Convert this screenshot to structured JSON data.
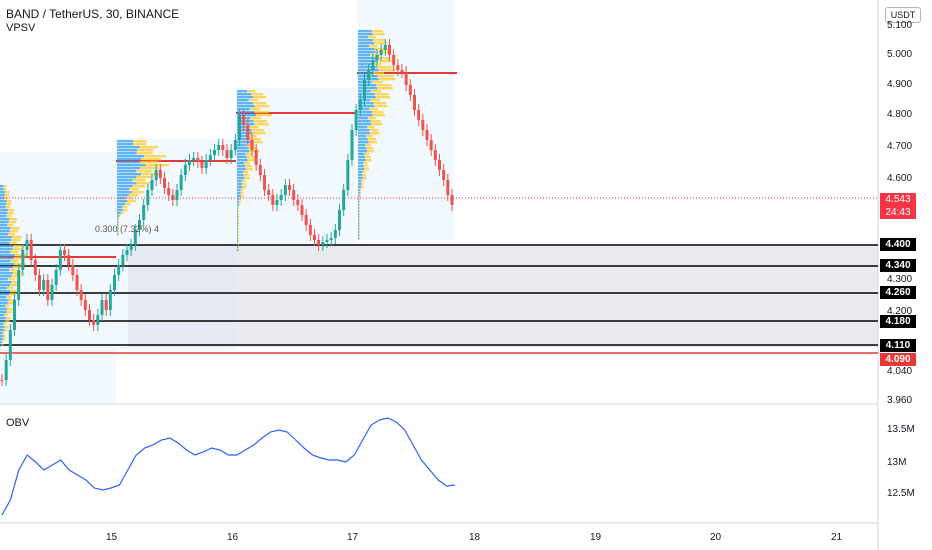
{
  "header": {
    "title": "BAND / TetherUS, 30, BINANCE",
    "indicator": "VPSV",
    "currency": "USDT"
  },
  "fib_label": "0.300 (7.32%) 4",
  "price_axis": [
    "5.100",
    "5.000",
    "4.900",
    "4.800",
    "4.700",
    "4.600",
    "4.300",
    "4.200",
    "4.040",
    "3.960"
  ],
  "current_price": {
    "value": "4.543",
    "countdown": "24:43"
  },
  "levels": [
    {
      "label": "4.400",
      "color": "#000000"
    },
    {
      "label": "4.340",
      "color": "#000000"
    },
    {
      "label": "4.260",
      "color": "#000000"
    },
    {
      "label": "4.180",
      "color": "#000000"
    },
    {
      "label": "4.110",
      "color": "#000000"
    },
    {
      "label": "4.090",
      "color": "#e53935"
    }
  ],
  "obv": {
    "label": "OBV",
    "axis": [
      "13.5M",
      "13M",
      "12.5M"
    ]
  },
  "time_axis": [
    "15",
    "16",
    "17",
    "18",
    "19",
    "20",
    "21"
  ],
  "colors": {
    "up": "#26a69a",
    "down": "#ef5350",
    "volume_up": "#2196f3",
    "volume_down": "#ffca28",
    "poc": "#e53935",
    "obv_line": "#2962ff"
  }
}
